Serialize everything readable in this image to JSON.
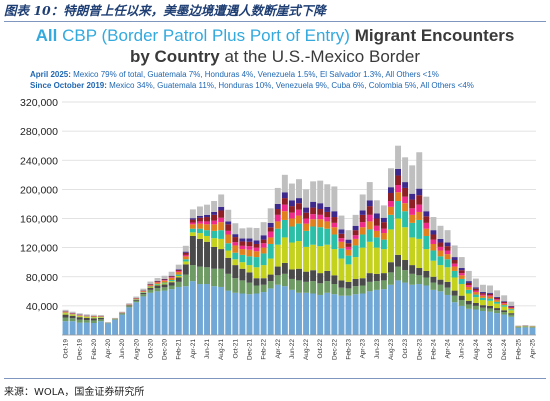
{
  "figure_caption": "图表 10：特朗普上任以来，美墨边境遭遇人数断崖式下降",
  "source_note": "来源：WOLA，国金证券研究所",
  "colors": {
    "title_accent": "#33a9de",
    "title_dark": "#3a3a3a",
    "note_blue": "#1f67b3",
    "caption": "#1f3f74",
    "grid": "#d9d9d9"
  },
  "chart_data": {
    "type": "bar",
    "stacked": true,
    "title": {
      "accent_1": "All",
      "accent_2": "CBP (Border Patrol Plus Port of Entry)",
      "dark_1": "Migrant Encounters",
      "dark_2": "by Country",
      "dark_3": "at the U.S.-Mexico Border"
    },
    "notes": [
      {
        "lead": "April 2025:",
        "text": "Mexico 79% of total, Guatemala 7%, Honduras 4%, Venezuela 1.5%, El Salvador 1.3%, All Others <1%"
      },
      {
        "lead": "Since October 2019:",
        "text": "Mexico 34%, Guatemala 11%, Honduras 10%, Venezuela 9%, Cuba 6%, Colombia 5%, All Others <4%"
      }
    ],
    "xlabel": "",
    "ylabel": "",
    "ylim": [
      0,
      320000
    ],
    "yticks": [
      40000,
      80000,
      120000,
      160000,
      200000,
      240000,
      280000,
      320000
    ],
    "ytick_labels": [
      "40,000",
      "80,000",
      "120,000",
      "160,000",
      "200,000",
      "240,000",
      "280,000",
      "320,000"
    ],
    "grid": true,
    "legend": "none",
    "x_tick_labels": [
      "Oct-19",
      "Dec-19",
      "Feb-20",
      "Apr-20",
      "Jun-20",
      "Aug-20",
      "Oct-20",
      "Dec-20",
      "Feb-21",
      "Apr-21",
      "Jun-21",
      "Aug-21",
      "Oct-21",
      "Dec-21",
      "Feb-22",
      "Apr-22",
      "Jun-22",
      "Aug-22",
      "Oct-22",
      "Dec-22",
      "Feb-23",
      "Apr-23",
      "Jun-23",
      "Aug-23",
      "Oct-23",
      "Dec-23",
      "Feb-24",
      "Apr-24",
      "Jun-24",
      "Aug-24",
      "Oct-24",
      "Dec-24",
      "Feb-25",
      "Apr-25"
    ],
    "categories": [
      "Oct-19",
      "Nov-19",
      "Dec-19",
      "Jan-20",
      "Feb-20",
      "Mar-20",
      "Apr-20",
      "May-20",
      "Jun-20",
      "Jul-20",
      "Aug-20",
      "Sep-20",
      "Oct-20",
      "Nov-20",
      "Dec-20",
      "Jan-21",
      "Feb-21",
      "Mar-21",
      "Apr-21",
      "May-21",
      "Jun-21",
      "Jul-21",
      "Aug-21",
      "Sep-21",
      "Oct-21",
      "Nov-21",
      "Dec-21",
      "Jan-22",
      "Feb-22",
      "Mar-22",
      "Apr-22",
      "May-22",
      "Jun-22",
      "Jul-22",
      "Aug-22",
      "Sep-22",
      "Oct-22",
      "Nov-22",
      "Dec-22",
      "Jan-23",
      "Feb-23",
      "Mar-23",
      "Apr-23",
      "May-23",
      "Jun-23",
      "Jul-23",
      "Aug-23",
      "Sep-23",
      "Oct-23",
      "Nov-23",
      "Dec-23",
      "Jan-24",
      "Feb-24",
      "Mar-24",
      "Apr-24",
      "May-24",
      "Jun-24",
      "Jul-24",
      "Aug-24",
      "Sep-24",
      "Oct-24",
      "Nov-24",
      "Dec-24",
      "Jan-25",
      "Feb-25",
      "Mar-25",
      "Apr-25"
    ],
    "series": [
      {
        "color": "#72a8d6",
        "values": [
          19000,
          19000,
          17000,
          17000,
          16500,
          19000,
          16000,
          21000,
          28000,
          38000,
          45000,
          53000,
          58000,
          60000,
          61000,
          63000,
          66000,
          67000,
          74000,
          70000,
          70000,
          67000,
          66000,
          61000,
          58000,
          57000,
          56000,
          57000,
          59000,
          64000,
          69000,
          67000,
          62000,
          58000,
          58000,
          57000,
          55000,
          58000,
          56000,
          54000,
          54000,
          56000,
          57000,
          60000,
          62000,
          63000,
          69000,
          75000,
          72000,
          69000,
          70000,
          68000,
          62000,
          60000,
          55000,
          45000,
          40000,
          36000,
          35000,
          33000,
          32000,
          30000,
          28000,
          25000,
          10000,
          10500,
          10000
        ]
      },
      {
        "color": "#6e9a63",
        "values": [
          5000,
          4000,
          4000,
          3500,
          3500,
          2500,
          600,
          800,
          1200,
          1500,
          2000,
          3000,
          4000,
          4500,
          4500,
          5000,
          7000,
          16000,
          22000,
          24000,
          23000,
          24000,
          25000,
          23000,
          20000,
          18000,
          16000,
          11000,
          10000,
          10000,
          13000,
          17000,
          15000,
          17000,
          15000,
          17000,
          16000,
          16000,
          14000,
          11000,
          10000,
          11000,
          11000,
          13000,
          12000,
          12000,
          17000,
          19000,
          17000,
          15000,
          12000,
          11000,
          10000,
          9000,
          10000,
          9000,
          8000,
          6000,
          5000,
          4500,
          4500,
          4000,
          3500,
          3000,
          1000,
          1000,
          900
        ]
      },
      {
        "color": "#4a4a4a",
        "values": [
          4000,
          3500,
          3500,
          3000,
          3000,
          2000,
          400,
          500,
          800,
          1000,
          1500,
          2000,
          3000,
          3500,
          4000,
          4500,
          6000,
          14000,
          40000,
          38000,
          35000,
          30000,
          27000,
          22000,
          18000,
          16000,
          14000,
          10000,
          9000,
          9000,
          12000,
          15000,
          13000,
          16000,
          14000,
          15000,
          14000,
          14000,
          12000,
          10000,
          9000,
          10000,
          10000,
          12000,
          10000,
          10000,
          14000,
          16000,
          14000,
          12000,
          10000,
          9000,
          8000,
          7000,
          8000,
          7000,
          6000,
          5000,
          4000,
          3500,
          3500,
          3000,
          2500,
          2000,
          400,
          400,
          400
        ]
      },
      {
        "color": "#c4d11d",
        "values": [
          2000,
          1500,
          1500,
          1500,
          1500,
          1000,
          0,
          100,
          200,
          300,
          400,
          600,
          1000,
          1200,
          1300,
          1500,
          2000,
          4000,
          5000,
          8000,
          8000,
          12000,
          14000,
          10000,
          8000,
          9000,
          10000,
          15000,
          18000,
          22000,
          30000,
          35000,
          37000,
          38000,
          34000,
          35000,
          37000,
          36000,
          36000,
          30000,
          24000,
          30000,
          42000,
          43000,
          36000,
          33000,
          45000,
          50000,
          45000,
          38000,
          40000,
          30000,
          22000,
          20000,
          20000,
          18000,
          16000,
          10000,
          8000,
          7000,
          7000,
          6000,
          5000,
          4000,
          400,
          400,
          400
        ]
      },
      {
        "color": "#2bbfa8",
        "values": [
          500,
          400,
          400,
          300,
          300,
          300,
          0,
          100,
          100,
          200,
          300,
          400,
          700,
          1000,
          1200,
          1500,
          2000,
          3000,
          5000,
          6000,
          8000,
          10000,
          12000,
          10000,
          9000,
          10000,
          12000,
          14000,
          16000,
          20000,
          22000,
          24000,
          22000,
          24000,
          22000,
          25000,
          26000,
          22000,
          20000,
          14000,
          12000,
          16000,
          18000,
          17000,
          14000,
          13000,
          20000,
          24000,
          22000,
          20000,
          26000,
          18000,
          14000,
          12000,
          11000,
          9000,
          7000,
          5000,
          3500,
          3000,
          3000,
          2500,
          2000,
          1500,
          200,
          200,
          200
        ]
      },
      {
        "color": "#e0811d",
        "values": [
          1000,
          800,
          700,
          600,
          600,
          500,
          100,
          200,
          300,
          500,
          800,
          1000,
          1500,
          2000,
          2500,
          3000,
          3500,
          4000,
          6000,
          7000,
          8000,
          9000,
          11000,
          12000,
          10000,
          8000,
          9000,
          8000,
          8000,
          9000,
          10000,
          12000,
          11000,
          11000,
          10000,
          10000,
          11000,
          10000,
          10000,
          9000,
          8000,
          9000,
          10000,
          11000,
          9000,
          9000,
          11000,
          12000,
          11000,
          11000,
          11000,
          10000,
          9000,
          8000,
          7000,
          6000,
          5000,
          4000,
          3500,
          3000,
          3000,
          2500,
          2000,
          1500,
          200,
          200,
          200
        ]
      },
      {
        "color": "#ef2b8a",
        "values": [
          300,
          300,
          300,
          300,
          300,
          200,
          0,
          50,
          100,
          150,
          200,
          300,
          500,
          600,
          800,
          1000,
          1200,
          2000,
          2500,
          3000,
          4000,
          5000,
          6000,
          5000,
          4500,
          4500,
          5000,
          5000,
          6000,
          8000,
          9000,
          9000,
          8000,
          8000,
          7000,
          7000,
          6000,
          6000,
          6000,
          5000,
          4000,
          5000,
          7000,
          9000,
          7000,
          6000,
          8000,
          10000,
          9000,
          9000,
          10000,
          8000,
          6000,
          5000,
          5000,
          4000,
          3000,
          2500,
          2000,
          1500,
          1500,
          1200,
          1000,
          800,
          100,
          100,
          100
        ]
      },
      {
        "color": "#8e1f24",
        "values": [
          500,
          400,
          400,
          300,
          300,
          300,
          0,
          100,
          200,
          300,
          400,
          500,
          800,
          900,
          1000,
          1200,
          1500,
          3000,
          4000,
          5000,
          6000,
          8000,
          10000,
          9000,
          7000,
          6000,
          6000,
          5000,
          5000,
          6000,
          8000,
          9000,
          9000,
          9000,
          8000,
          9000,
          8000,
          7000,
          8000,
          6000,
          5000,
          7000,
          10000,
          12000,
          10000,
          9000,
          11000,
          13000,
          12000,
          12000,
          13000,
          9000,
          7000,
          6000,
          6000,
          5000,
          4000,
          3000,
          2500,
          2000,
          2000,
          1800,
          1500,
          1200,
          100,
          100,
          100
        ]
      },
      {
        "color": "#3d2a8c",
        "values": [
          300,
          300,
          300,
          200,
          200,
          200,
          0,
          50,
          100,
          150,
          200,
          300,
          400,
          500,
          600,
          700,
          900,
          1500,
          2000,
          2500,
          3000,
          4000,
          5000,
          4000,
          4000,
          4000,
          4500,
          5000,
          6000,
          6000,
          7000,
          8000,
          8000,
          7000,
          7000,
          8000,
          8000,
          7000,
          8000,
          6000,
          5000,
          6000,
          6000,
          8000,
          7000,
          6000,
          8000,
          9000,
          8000,
          8000,
          9000,
          7000,
          6000,
          5000,
          5000,
          4000,
          3000,
          2500,
          2000,
          1500,
          1500,
          1300,
          1000,
          800,
          100,
          100,
          100
        ]
      },
      {
        "color": "#bfbfbf",
        "values": [
          2000,
          1800,
          1700,
          1700,
          1700,
          1500,
          300,
          600,
          1000,
          1500,
          2000,
          2500,
          3500,
          4000,
          4500,
          5500,
          6500,
          8000,
          12000,
          13000,
          14000,
          15000,
          17000,
          16000,
          15000,
          14000,
          15000,
          17000,
          18000,
          20000,
          22000,
          24000,
          23000,
          26000,
          25000,
          28000,
          31000,
          31000,
          34000,
          19000,
          13000,
          15000,
          22000,
          25000,
          18000,
          17000,
          26000,
          32000,
          34000,
          39000,
          50000,
          20000,
          18000,
          18000,
          17000,
          16000,
          15000,
          14000,
          12000,
          10000,
          10000,
          9000,
          8000,
          6000,
          600,
          600,
          500
        ]
      }
    ]
  }
}
